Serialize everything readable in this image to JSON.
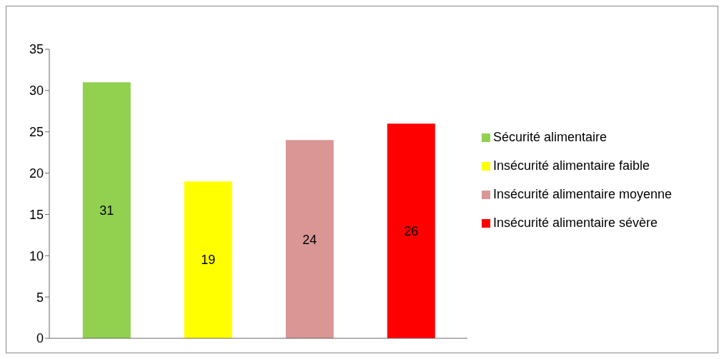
{
  "chart_data": {
    "type": "bar",
    "categories": [
      null
    ],
    "series": [
      {
        "name": "Sécurité alimentaire",
        "color": "#92d050",
        "values": [
          31
        ]
      },
      {
        "name": "Insécurité alimentaire faible",
        "color": "#ffff00",
        "values": [
          19
        ]
      },
      {
        "name": "Insécurité alimentaire moyenne",
        "color": "#d99694",
        "values": [
          24
        ]
      },
      {
        "name": "Insécurité alimentaire sévère",
        "color": "#ff0000",
        "values": [
          26
        ]
      }
    ],
    "ylim": [
      0,
      35
    ],
    "yticks": [
      0,
      5,
      10,
      15,
      20,
      25,
      30,
      35
    ],
    "data_labels": true,
    "legend": "right"
  }
}
